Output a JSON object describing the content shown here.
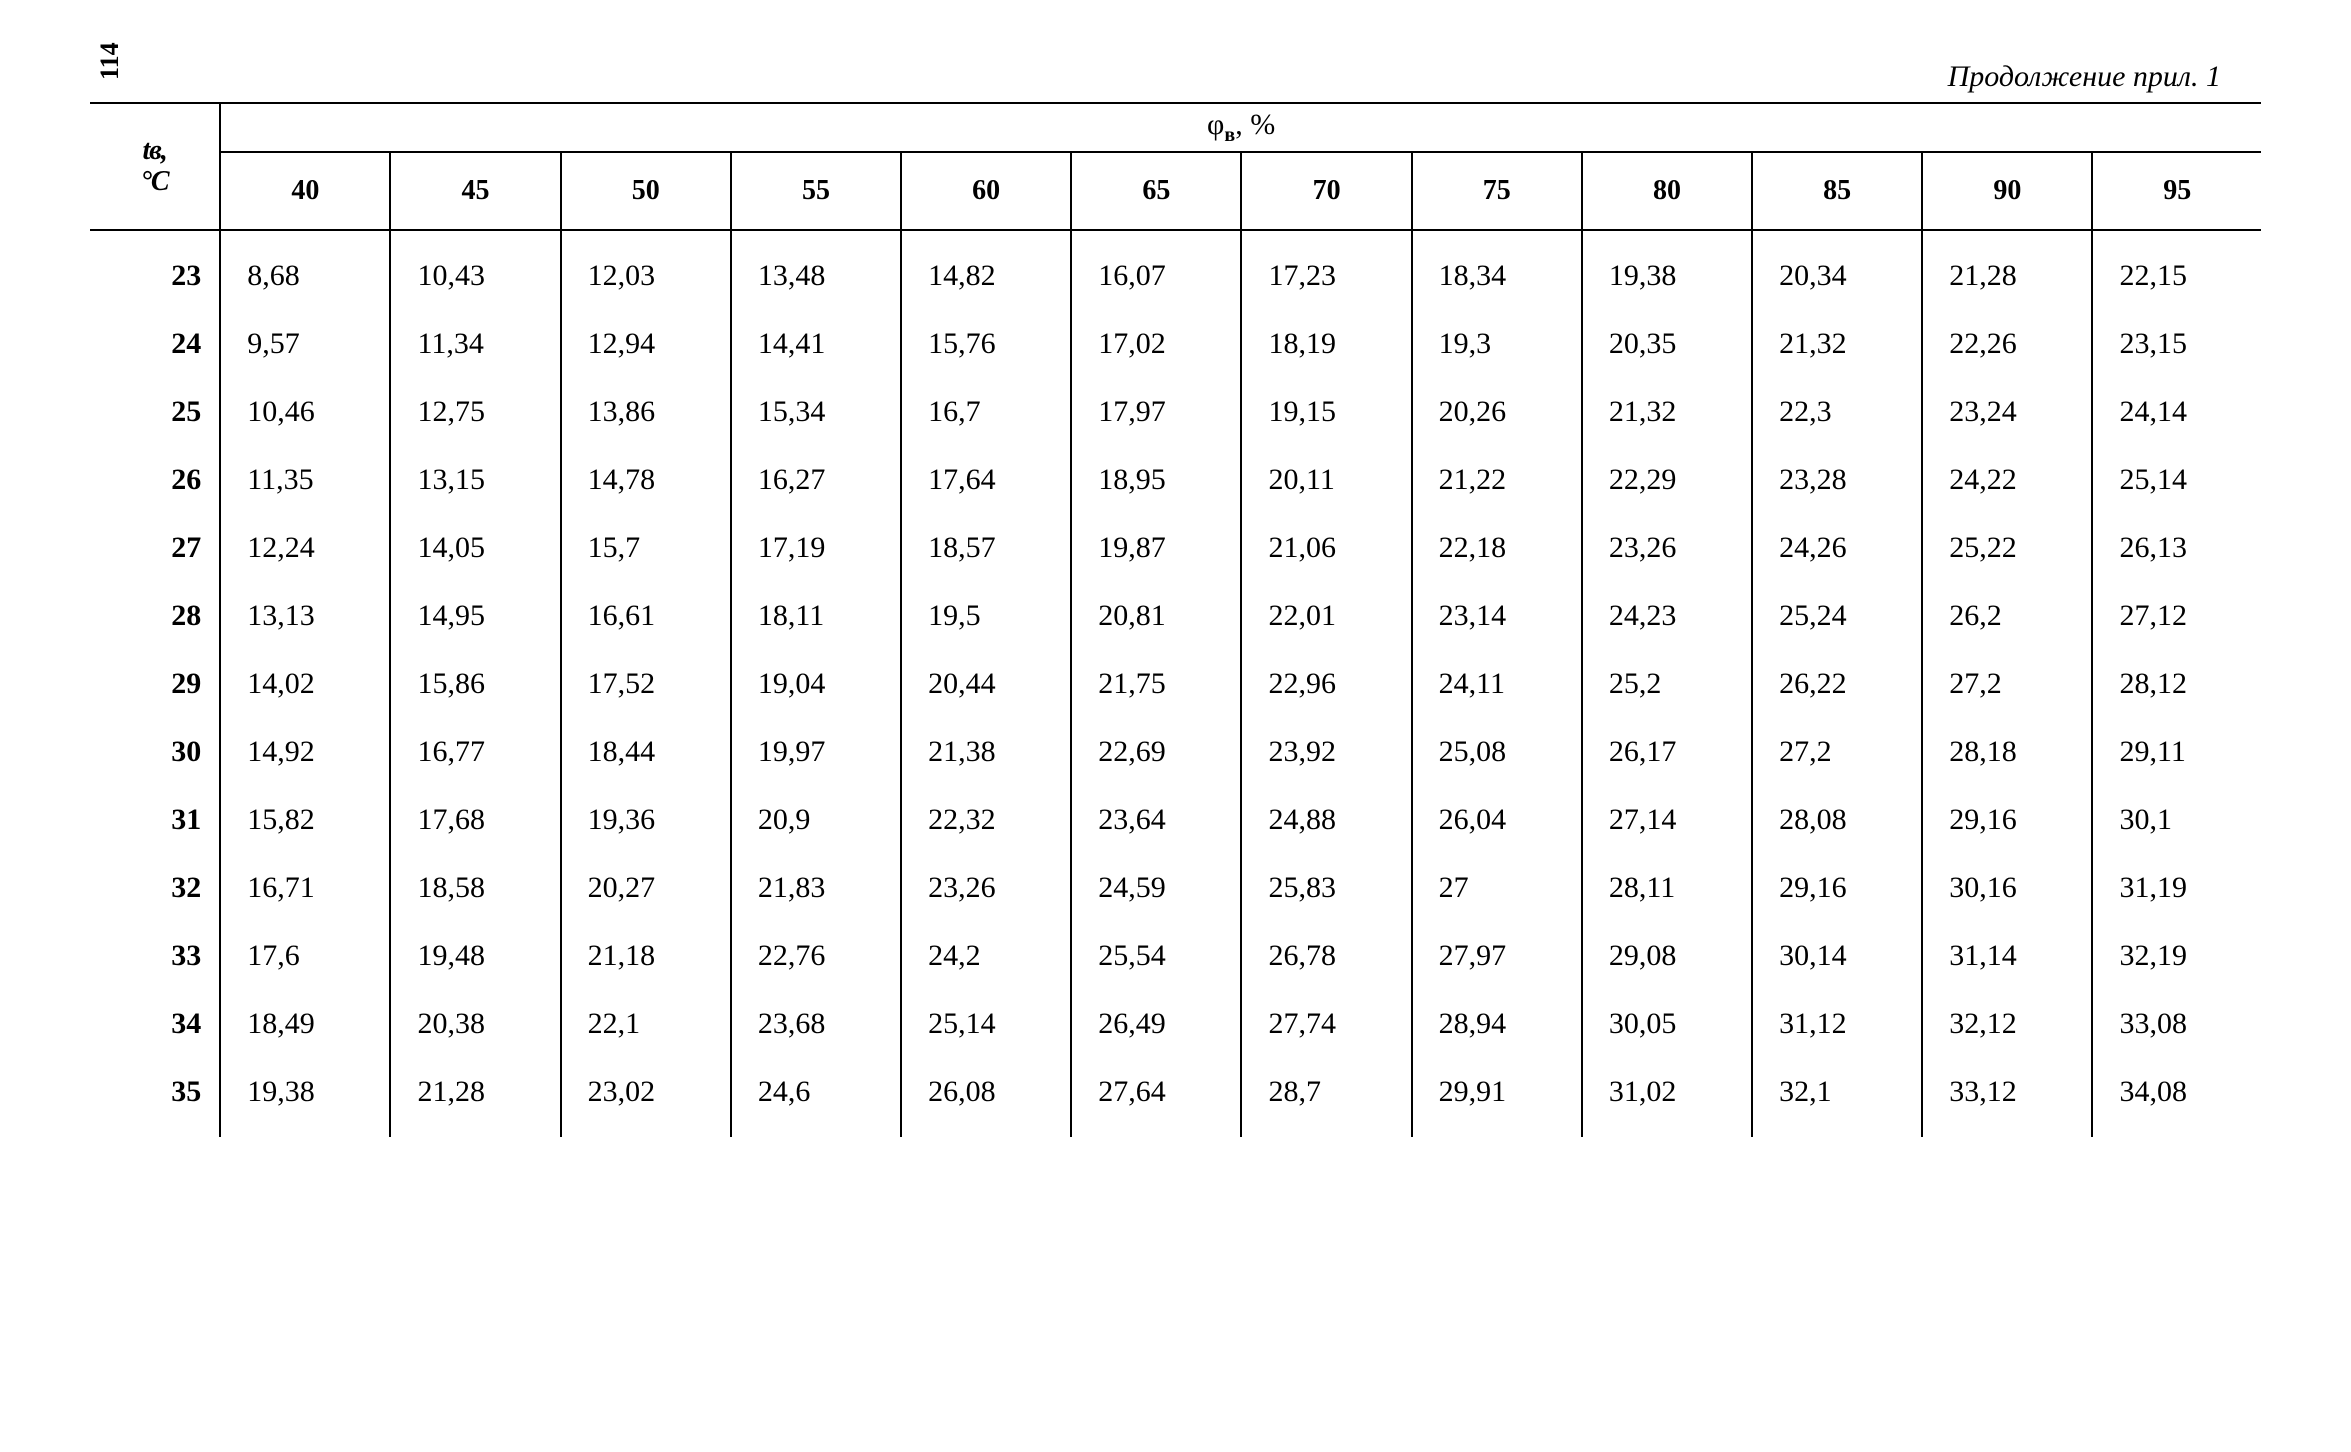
{
  "page_number": "114",
  "caption": "Продолжение прил. 1",
  "row_header_label_top": "tв,",
  "row_header_label_bottom": "°C",
  "super_header_label": "φв, %",
  "columns": [
    "40",
    "45",
    "50",
    "55",
    "60",
    "65",
    "70",
    "75",
    "80",
    "85",
    "90",
    "95"
  ],
  "rows": [
    {
      "label": "23",
      "values": [
        "8,68",
        "10,43",
        "12,03",
        "13,48",
        "14,82",
        "16,07",
        "17,23",
        "18,34",
        "19,38",
        "20,34",
        "21,28",
        "22,15"
      ]
    },
    {
      "label": "24",
      "values": [
        "9,57",
        "11,34",
        "12,94",
        "14,41",
        "15,76",
        "17,02",
        "18,19",
        "19,3",
        "20,35",
        "21,32",
        "22,26",
        "23,15"
      ]
    },
    {
      "label": "25",
      "values": [
        "10,46",
        "12,75",
        "13,86",
        "15,34",
        "16,7",
        "17,97",
        "19,15",
        "20,26",
        "21,32",
        "22,3",
        "23,24",
        "24,14"
      ]
    },
    {
      "label": "26",
      "values": [
        "11,35",
        "13,15",
        "14,78",
        "16,27",
        "17,64",
        "18,95",
        "20,11",
        "21,22",
        "22,29",
        "23,28",
        "24,22",
        "25,14"
      ]
    },
    {
      "label": "27",
      "values": [
        "12,24",
        "14,05",
        "15,7",
        "17,19",
        "18,57",
        "19,87",
        "21,06",
        "22,18",
        "23,26",
        "24,26",
        "25,22",
        "26,13"
      ]
    },
    {
      "label": "28",
      "values": [
        "13,13",
        "14,95",
        "16,61",
        "18,11",
        "19,5",
        "20,81",
        "22,01",
        "23,14",
        "24,23",
        "25,24",
        "26,2",
        "27,12"
      ]
    },
    {
      "label": "29",
      "values": [
        "14,02",
        "15,86",
        "17,52",
        "19,04",
        "20,44",
        "21,75",
        "22,96",
        "24,11",
        "25,2",
        "26,22",
        "27,2",
        "28,12"
      ]
    },
    {
      "label": "30",
      "values": [
        "14,92",
        "16,77",
        "18,44",
        "19,97",
        "21,38",
        "22,69",
        "23,92",
        "25,08",
        "26,17",
        "27,2",
        "28,18",
        "29,11"
      ]
    },
    {
      "label": "31",
      "values": [
        "15,82",
        "17,68",
        "19,36",
        "20,9",
        "22,32",
        "23,64",
        "24,88",
        "26,04",
        "27,14",
        "28,08",
        "29,16",
        "30,1"
      ]
    },
    {
      "label": "32",
      "values": [
        "16,71",
        "18,58",
        "20,27",
        "21,83",
        "23,26",
        "24,59",
        "25,83",
        "27",
        "28,11",
        "29,16",
        "30,16",
        "31,19"
      ]
    },
    {
      "label": "33",
      "values": [
        "17,6",
        "19,48",
        "21,18",
        "22,76",
        "24,2",
        "25,54",
        "26,78",
        "27,97",
        "29,08",
        "30,14",
        "31,14",
        "32,19"
      ]
    },
    {
      "label": "34",
      "values": [
        "18,49",
        "20,38",
        "22,1",
        "23,68",
        "25,14",
        "26,49",
        "27,74",
        "28,94",
        "30,05",
        "31,12",
        "32,12",
        "33,08"
      ]
    },
    {
      "label": "35",
      "values": [
        "19,38",
        "21,28",
        "23,02",
        "24,6",
        "26,08",
        "27,64",
        "28,7",
        "29,91",
        "31,02",
        "32,1",
        "33,12",
        "34,08"
      ]
    }
  ],
  "styling": {
    "font_family": "Times New Roman",
    "font_size_body": 30,
    "font_size_headers": 28,
    "text_color": "#000000",
    "background_color": "#ffffff",
    "border_color": "#000000",
    "border_width": 2
  }
}
